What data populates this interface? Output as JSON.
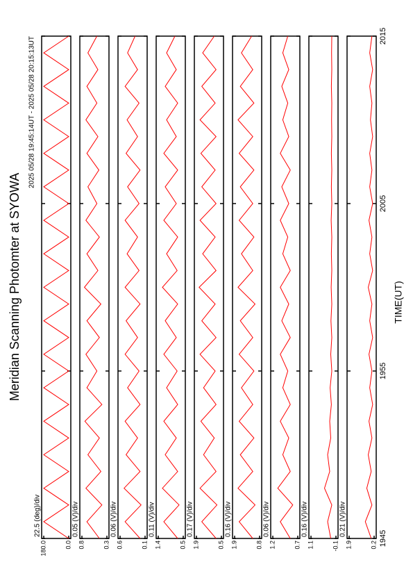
{
  "chart_data": {
    "type": "line",
    "title": "Meridian Scanning Photomter at SYOWA",
    "subtitle": "2025 05/28 19:45:14UT - 2025 05/28 20:15:13UT",
    "x_label": "TIME(UT)",
    "xlim": [
      0,
      30
    ],
    "xticks": [
      {
        "value": 0,
        "label": "1945"
      },
      {
        "value": 10,
        "label": "1955"
      },
      {
        "value": 20,
        "label": "2005"
      },
      {
        "value": 30,
        "label": "2015"
      }
    ],
    "x": [
      0,
      1,
      2,
      3,
      4,
      5,
      6,
      7,
      8,
      9,
      10,
      11,
      12,
      13,
      14,
      15,
      16,
      17,
      18,
      19,
      20,
      21,
      22,
      23,
      24,
      25,
      26,
      27,
      28,
      29,
      30
    ],
    "color": "#ff0000",
    "panels": [
      {
        "scale_label": "22.5 (deg)/div",
        "ylim": [
          0,
          180
        ],
        "yticks": [
          {
            "value": 0,
            "label": "0.0"
          },
          {
            "value": 180,
            "label": "180.0"
          }
        ],
        "values": [
          0,
          180,
          0,
          180,
          0,
          180,
          0,
          180,
          0,
          180,
          0,
          180,
          0,
          180,
          0,
          180,
          0,
          180,
          0,
          180,
          0,
          180,
          0,
          180,
          0,
          180,
          0,
          180,
          0,
          180,
          0
        ]
      },
      {
        "scale_label": "0.05 (V)/div",
        "ylim": [
          0.3,
          0.8
        ],
        "yticks": [
          0.3,
          0.8
        ],
        "values": [
          0.45,
          0.7,
          0.4,
          0.72,
          0.42,
          0.68,
          0.45,
          0.74,
          0.4,
          0.7,
          0.5,
          0.72,
          0.45,
          0.7,
          0.42,
          0.75,
          0.48,
          0.7,
          0.45,
          0.72,
          0.5,
          0.68,
          0.46,
          0.7,
          0.48,
          0.72,
          0.5,
          0.7,
          0.48,
          0.68,
          0.5
        ]
      },
      {
        "scale_label": "0.06 (V)/div",
        "ylim": [
          0.1,
          0.6
        ],
        "yticks": [
          0.1,
          0.6
        ],
        "values": [
          0.2,
          0.5,
          0.18,
          0.52,
          0.2,
          0.48,
          0.25,
          0.5,
          0.2,
          0.45,
          0.22,
          0.5,
          0.25,
          0.48,
          0.2,
          0.5,
          0.22,
          0.46,
          0.25,
          0.5,
          0.22,
          0.45,
          0.2,
          0.48,
          0.25,
          0.46,
          0.22,
          0.5,
          0.25,
          0.45,
          0.3
        ]
      },
      {
        "scale_label": "0.11 (V)/div",
        "ylim": [
          0.5,
          1.4
        ],
        "yticks": [
          0.5,
          1.4
        ],
        "values": [
          0.7,
          1.2,
          0.65,
          1.25,
          0.7,
          1.15,
          0.75,
          1.2,
          0.7,
          1.1,
          0.72,
          1.2,
          0.75,
          1.15,
          0.7,
          1.25,
          0.72,
          1.1,
          0.7,
          1.2,
          0.75,
          1.15,
          0.7,
          1.2,
          0.75,
          1.1,
          0.7,
          1.15,
          0.75,
          1.1,
          0.8
        ]
      },
      {
        "scale_label": "0.17 (V)/div",
        "ylim": [
          0.5,
          1.9
        ],
        "yticks": [
          0.5,
          1.9
        ],
        "values": [
          0.8,
          1.6,
          0.75,
          1.7,
          0.8,
          1.5,
          0.9,
          1.65,
          0.8,
          1.5,
          0.85,
          1.7,
          0.8,
          1.6,
          0.85,
          1.75,
          0.8,
          1.55,
          0.85,
          1.7,
          0.8,
          1.6,
          0.85,
          1.65,
          0.8,
          1.7,
          0.85,
          1.6,
          0.8,
          1.55,
          0.9
        ]
      },
      {
        "scale_label": "0.16 (V)/div",
        "ylim": [
          0.8,
          1.9
        ],
        "yticks": [
          0.8,
          1.9
        ],
        "values": [
          1.1,
          1.7,
          1.0,
          1.75,
          1.1,
          1.65,
          1.05,
          1.7,
          1.1,
          1.6,
          1.05,
          1.7,
          1.1,
          1.65,
          1.0,
          1.75,
          1.1,
          1.6,
          1.05,
          1.7,
          1.1,
          1.65,
          1.05,
          1.7,
          1.1,
          1.75,
          1.05,
          1.65,
          1.1,
          1.6,
          1.15
        ]
      },
      {
        "scale_label": "0.06 (V)/div",
        "ylim": [
          0.7,
          1.2
        ],
        "yticks": [
          0.7,
          1.2
        ],
        "values": [
          0.85,
          1.05,
          0.8,
          1.1,
          0.85,
          1.0,
          0.88,
          1.05,
          0.85,
          1.0,
          0.9,
          1.05,
          0.85,
          1.02,
          0.88,
          1.05,
          0.85,
          1.0,
          0.9,
          1.05,
          0.88,
          1.02,
          0.85,
          1.05,
          0.88,
          1.0,
          0.9,
          1.02,
          0.88,
          1.0,
          0.9
        ]
      },
      {
        "scale_label": "0.16 (V)/div",
        "ylim": [
          -0.1,
          1.1
        ],
        "yticks": [
          -0.1,
          1.1
        ],
        "values": [
          0.15,
          0.3,
          0.1,
          0.45,
          0.2,
          0.3,
          0.15,
          0.2,
          0.12,
          0.18,
          0.1,
          0.15,
          0.1,
          0.14,
          0.1,
          0.13,
          0.1,
          0.12,
          0.1,
          0.13,
          0.1,
          0.12,
          0.1,
          0.12,
          0.1,
          0.11,
          0.1,
          0.12,
          0.1,
          0.11,
          0.1
        ]
      },
      {
        "scale_label": "0.21 (V)/div",
        "ylim": [
          0.2,
          1.9
        ],
        "yticks": [
          0.2,
          1.9
        ],
        "values": [
          0.4,
          0.8,
          0.35,
          0.7,
          0.4,
          0.6,
          0.35,
          0.55,
          0.3,
          0.5,
          0.35,
          0.55,
          0.3,
          0.5,
          0.35,
          0.6,
          0.3,
          0.5,
          0.35,
          0.55,
          0.3,
          0.5,
          0.35,
          0.5,
          0.3,
          0.45,
          0.35,
          0.5,
          0.3,
          0.5,
          0.35
        ]
      }
    ]
  }
}
